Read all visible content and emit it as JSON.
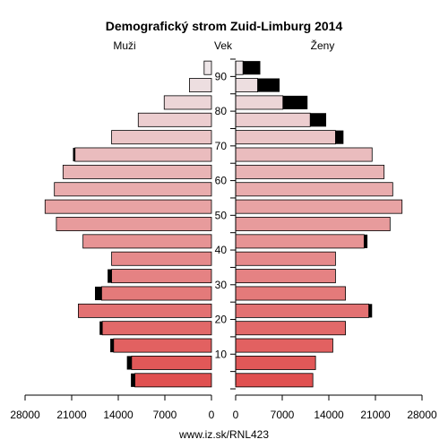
{
  "chart_data": {
    "type": "bar",
    "title": "Demografický strom Zuid-Limburg 2014",
    "left_header": "Muži",
    "center_header": "Vek",
    "right_header": "Ženy",
    "footer": "www.iz.sk/RNL423",
    "xlim": [
      0,
      28000
    ],
    "left_ticks": [
      "28000",
      "21000",
      "14000",
      "7000",
      "0"
    ],
    "right_ticks": [
      "0",
      "7000",
      "14000",
      "21000",
      "28000"
    ],
    "age_ticks": [
      "10",
      "20",
      "30",
      "40",
      "50",
      "60",
      "70",
      "80",
      "90"
    ],
    "age_groups": [
      "0-4",
      "5-9",
      "10-14",
      "15-19",
      "20-24",
      "25-29",
      "30-34",
      "35-39",
      "40-44",
      "45-49",
      "50-54",
      "55-59",
      "60-64",
      "65-69",
      "70-74",
      "75-79",
      "80-84",
      "85-89",
      "90+"
    ],
    "series": [
      {
        "name": "Muži",
        "values": [
          11500,
          12000,
          14700,
          16400,
          20000,
          16500,
          15000,
          15000,
          19300,
          23300,
          25000,
          23600,
          22300,
          20500,
          15000,
          11000,
          7100,
          3300,
          1100
        ]
      },
      {
        "name": "Muži (čierny úsek)",
        "values": [
          600,
          700,
          500,
          400,
          0,
          1000,
          600,
          0,
          0,
          0,
          0,
          0,
          0,
          300,
          0,
          0,
          0,
          0,
          0
        ]
      },
      {
        "name": "Ženy",
        "values": [
          11600,
          12000,
          14600,
          16500,
          20000,
          16500,
          15000,
          15000,
          19300,
          23200,
          25000,
          23600,
          22300,
          20500,
          15000,
          11200,
          7100,
          3300,
          1100
        ]
      },
      {
        "name": "Ženy (čierny úsek)",
        "values": [
          0,
          0,
          0,
          0,
          500,
          0,
          0,
          0,
          500,
          0,
          0,
          0,
          0,
          0,
          1200,
          2400,
          3700,
          3300,
          2600
        ]
      }
    ]
  }
}
